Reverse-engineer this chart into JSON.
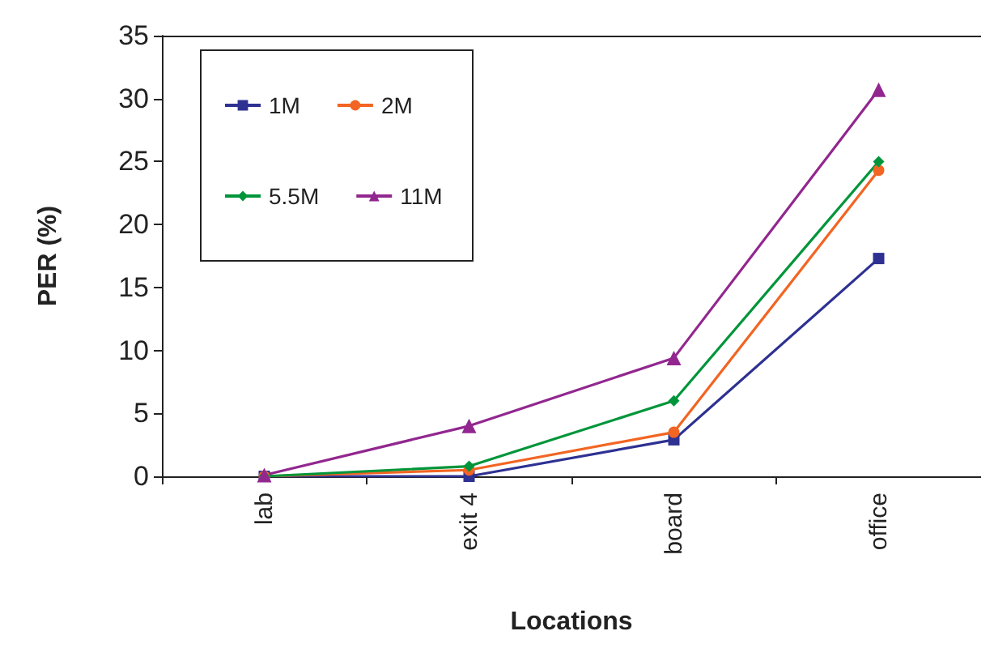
{
  "chart_data": {
    "type": "line",
    "xlabel": "Locations",
    "ylabel": "PER (%)",
    "categories": [
      "lab",
      "exit 4",
      "board",
      "office"
    ],
    "series": [
      {
        "name": "1M",
        "color": "#2e3192",
        "marker": "square",
        "values": [
          0,
          0,
          2.9,
          17.3
        ]
      },
      {
        "name": "2M",
        "color": "#f26522",
        "marker": "circle",
        "values": [
          0,
          0.5,
          3.5,
          24.3
        ]
      },
      {
        "name": "5.5M",
        "color": "#00953a",
        "marker": "diamond",
        "values": [
          0,
          0.8,
          6,
          25
        ]
      },
      {
        "name": "11M",
        "color": "#92278f",
        "marker": "triangle",
        "values": [
          0.1,
          4,
          9.4,
          30.7
        ]
      }
    ],
    "ylim": [
      0,
      35
    ],
    "yticks": [
      0,
      5,
      10,
      15,
      20,
      25,
      30,
      35
    ],
    "grid": false,
    "legend": "top left",
    "line_style": "solid"
  }
}
